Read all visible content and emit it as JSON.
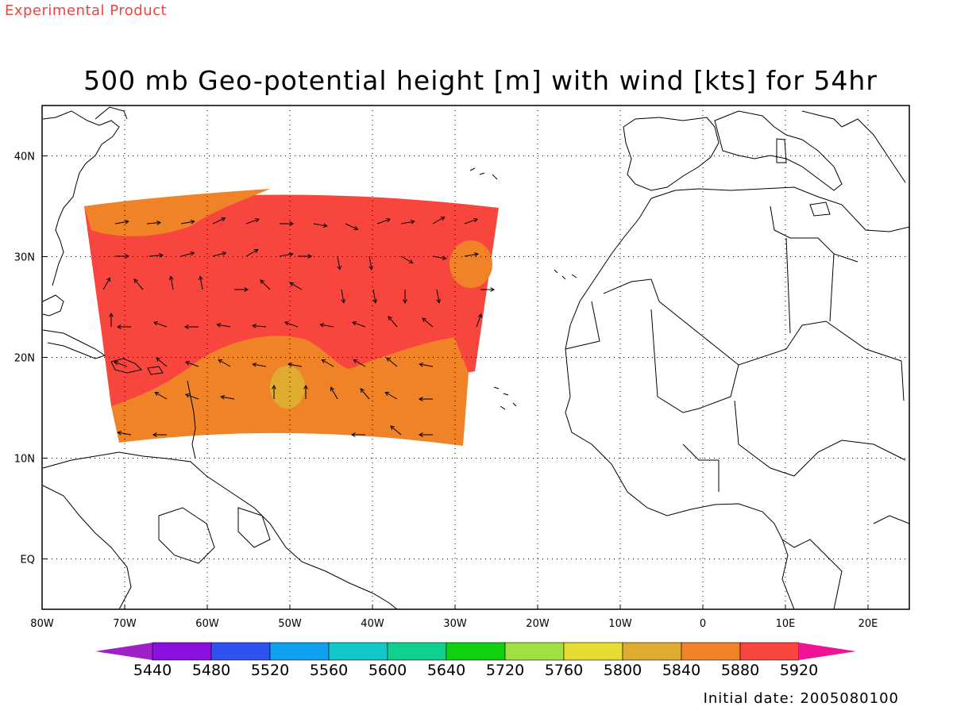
{
  "header": {
    "product_label": "Experimental Product",
    "title": "500 mb Geo-potential height [m] with wind [kts] for 54hr"
  },
  "footer": {
    "initial_date": "Initial date: 2005080100"
  },
  "chart_data": {
    "type": "map",
    "grid": true,
    "x_ticks": [
      "80W",
      "70W",
      "60W",
      "50W",
      "40W",
      "30W",
      "20W",
      "10W",
      "0",
      "10E",
      "20E"
    ],
    "y_ticks": [
      "40N",
      "30N",
      "20N",
      "10N",
      "EQ"
    ],
    "lon_range": [
      -80,
      25
    ],
    "lat_range": [
      -5,
      45
    ],
    "colorbar": {
      "labels": [
        "5440",
        "5480",
        "5520",
        "5560",
        "5600",
        "5640",
        "5720",
        "5760",
        "5800",
        "5840",
        "5880",
        "5920"
      ],
      "colors": [
        "#a020c8",
        "#8b10e0",
        "#3050f0",
        "#10a0f0",
        "#10c8c8",
        "#10d090",
        "#10d010",
        "#a0e040",
        "#e8dc30",
        "#e0ac30",
        "#f08228",
        "#f8463f",
        "#f01494"
      ]
    },
    "fields": [
      {
        "level": "5920",
        "color": "#f8463f",
        "region": "northern belt of the plotted domain"
      },
      {
        "level": "5880",
        "color": "#f08228",
        "region": "northwest corner and southern belt"
      },
      {
        "level": "5840",
        "color": "#e0ac30",
        "region": "small cells near 50W 17N and 28W 30N"
      }
    ]
  }
}
